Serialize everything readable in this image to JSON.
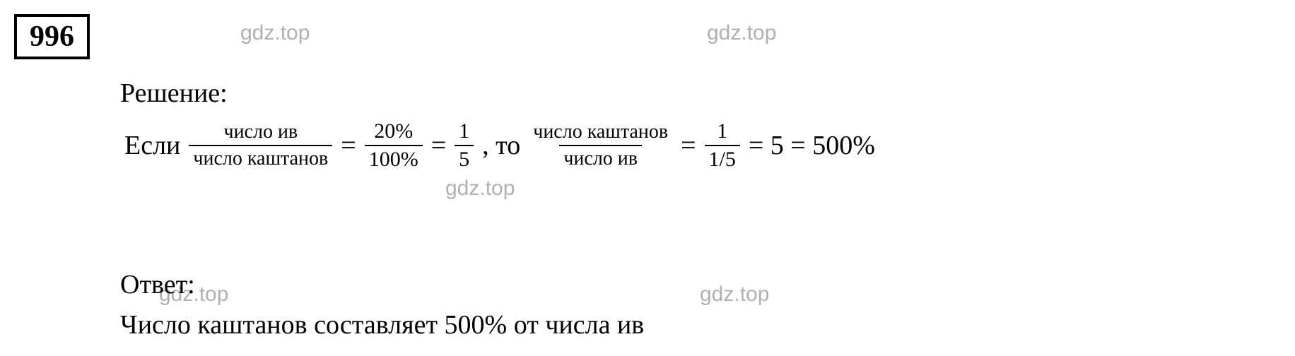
{
  "problem_number": "996",
  "watermark_text": "gdz.top",
  "solution_label": "Решение:",
  "equation": {
    "if_text": "Если",
    "frac1": {
      "num": "число ив",
      "denom": "число каштанов"
    },
    "eq1": "=",
    "frac2": {
      "num": "20%",
      "denom": "100%"
    },
    "eq2": "=",
    "frac3": {
      "num": "1",
      "denom": "5"
    },
    "comma_then": ", то",
    "frac4": {
      "num": "число каштанов",
      "denom": "число ив"
    },
    "eq3": "=",
    "frac5": {
      "num": "1",
      "denom": "1/5"
    },
    "eq4": "= 5 = 500%"
  },
  "answer_label": "Ответ:",
  "answer_text": "Число каштанов составляет 500% от числа ив",
  "colors": {
    "text": "#000000",
    "watermark": "#b0b0b0",
    "background": "#ffffff"
  }
}
